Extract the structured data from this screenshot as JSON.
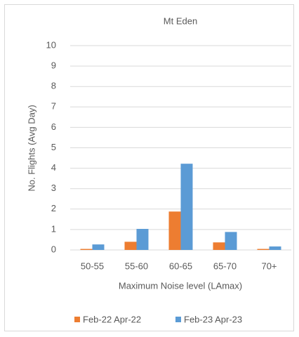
{
  "chart_data": {
    "type": "bar",
    "title": "Mt Eden",
    "x_label": "Maximum Noise level (LAmax)",
    "y_label": "No. Flights (Avg Day)",
    "categories": [
      "50-55",
      "55-60",
      "60-65",
      "65-70",
      "70+"
    ],
    "series": [
      {
        "name": "Feb-22 Apr-22",
        "color": "#ed7d31",
        "values": [
          0.05,
          0.4,
          1.88,
          0.37,
          0.05
        ]
      },
      {
        "name": "Feb-23 Apr-23",
        "color": "#5b9bd5",
        "values": [
          0.27,
          1.03,
          4.22,
          0.88,
          0.17
        ]
      }
    ],
    "ylim": [
      0,
      10
    ],
    "yticks": [
      0,
      1,
      2,
      3,
      4,
      5,
      6,
      7,
      8,
      9,
      10
    ],
    "grid": true,
    "legend": "bottom"
  }
}
